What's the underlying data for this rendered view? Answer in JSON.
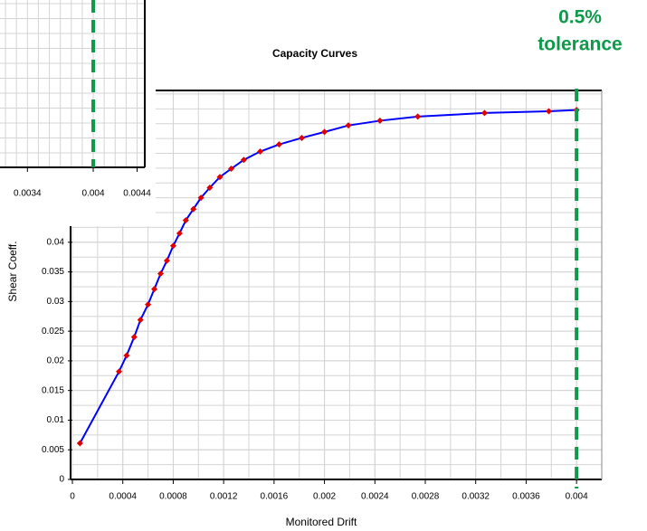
{
  "chart_data": {
    "type": "line",
    "title": "Capacity Curves",
    "x_label": "Monitored Drift",
    "y_label": "Shear Coeff.",
    "x": [
      6e-05,
      0.00037,
      0.00043,
      0.00049,
      0.00054,
      0.0006,
      0.00065,
      0.0007,
      0.00075,
      0.0008,
      0.00085,
      0.0009,
      0.00096,
      0.00102,
      0.00109,
      0.00117,
      0.00126,
      0.00136,
      0.00149,
      0.00164,
      0.00182,
      0.002,
      0.00219,
      0.00244,
      0.00274,
      0.00327,
      0.00378,
      0.004
    ],
    "series": [
      {
        "color": "#0000ff",
        "marker_color": "#e00000",
        "values": [
          0.0061,
          0.0182,
          0.0209,
          0.024,
          0.0269,
          0.0295,
          0.0321,
          0.0347,
          0.0369,
          0.0394,
          0.0415,
          0.0437,
          0.0456,
          0.0475,
          0.0492,
          0.051,
          0.0524,
          0.0539,
          0.0553,
          0.0565,
          0.0576,
          0.0586,
          0.0597,
          0.0605,
          0.0612,
          0.0618,
          0.0621,
          0.0623
        ]
      }
    ],
    "xlim": [
      0,
      0.0042
    ],
    "ylim": [
      0,
      0.0656
    ],
    "xticks": [
      0,
      0.0004,
      0.0008,
      0.0012,
      0.0016,
      0.002,
      0.0024,
      0.0028,
      0.0032,
      0.0036,
      0.004
    ],
    "yticks": [
      0,
      0.005,
      0.01,
      0.015,
      0.02,
      0.025,
      0.03,
      0.035,
      0.04
    ],
    "grid": true,
    "tolerance_line": {
      "x": 0.004,
      "color": "#0e9a4a",
      "label_lines": [
        "0.5%",
        "tolerance"
      ]
    },
    "inset": {
      "xlim": [
        0.00315,
        0.00447
      ],
      "xticks": [
        0.0034,
        0.004,
        0.0044
      ]
    }
  }
}
